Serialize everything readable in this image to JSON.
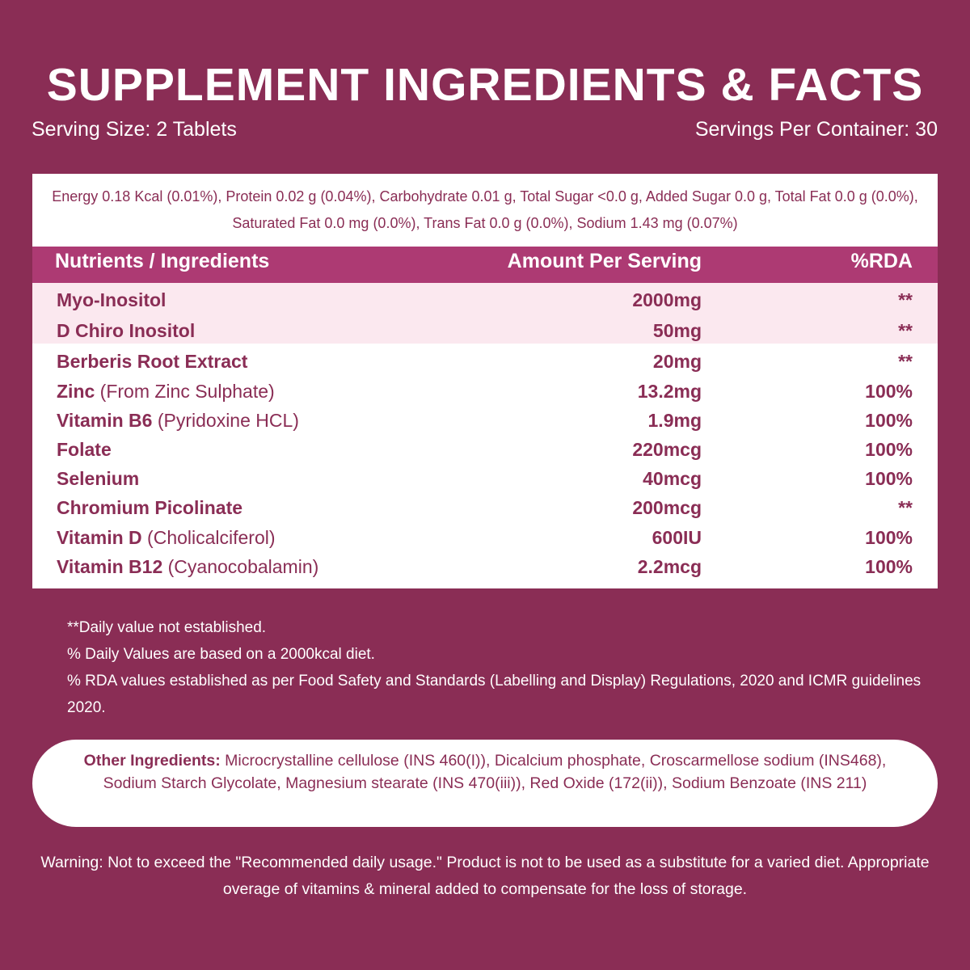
{
  "header": {
    "title": "SUPPLEMENT INGREDIENTS & FACTS",
    "serving_size": "Serving Size: 2 Tablets",
    "servings_per_container": "Servings Per Container: 30"
  },
  "energy": "Energy 0.18 Kcal (0.01%), Protein 0.02 g (0.04%), Carbohydrate 0.01 g, Total Sugar <0.0 g, Added Sugar 0.0 g, Total Fat 0.0 g (0.0%),  Saturated Fat 0.0 mg (0.0%), Trans Fat 0.0 g (0.0%), Sodium 1.43 mg (0.07%)",
  "table": {
    "columns": [
      "Nutrients / Ingredients",
      "Amount Per Serving",
      "%RDA"
    ],
    "rows": [
      {
        "name": "Myo-Inositol",
        "amount": "2000mg",
        "rda": "**"
      },
      {
        "name": "D Chiro Inositol",
        "amount": "50mg",
        "rda": "**"
      },
      {
        "name": "Berberis Root Extract",
        "amount": "20mg",
        "rda": "**"
      },
      {
        "name": "Zinc",
        "note": "(From Zinc Sulphate)",
        "amount": "13.2mg",
        "rda": "100%"
      },
      {
        "name": "Vitamin B6",
        "note": "(Pyridoxine HCL)",
        "amount": "1.9mg",
        "rda": "100%"
      },
      {
        "name": "Folate",
        "amount": "220mcg",
        "rda": "100%"
      },
      {
        "name": "Selenium",
        "amount": "40mcg",
        "rda": "100%"
      },
      {
        "name": "Chromium Picolinate",
        "amount": "200mcg",
        "rda": "**"
      },
      {
        "name": "Vitamin D",
        "note": "(Cholicalciferol)",
        "amount": "600IU",
        "rda": "100%"
      },
      {
        "name": "Vitamin B12",
        "note": "(Cyanocobalamin)",
        "amount": "2.2mcg",
        "rda": "100%"
      }
    ]
  },
  "footnotes": [
    "**Daily value not established.",
    "% Daily Values are based on a 2000kcal diet.",
    "% RDA values established as per Food Safety and Standards (Labelling and Display) Regulations, 2020 and ICMR guidelines 2020."
  ],
  "other_ingredients": {
    "label": "Other Ingredients:",
    "text": "Microcrystalline cellulose (INS 460(I)), Dicalcium phosphate, Croscarmellose sodium (INS468), Sodium Starch Glycolate, Magnesium stearate (INS 470(iii)), Red Oxide (172(ii)), Sodium Benzoate (INS 211)"
  },
  "warning": "Warning: Not to exceed the \"Recommended daily usage.\" Product is not to be used as a substitute for a varied diet. Appropriate overage of vitamins & mineral added to compensate for the loss of storage."
}
